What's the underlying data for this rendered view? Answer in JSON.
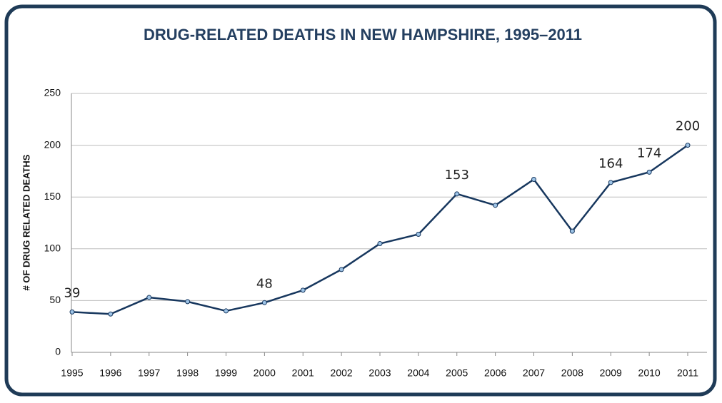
{
  "chart_data": {
    "type": "line",
    "title": "DRUG-RELATED DEATHS IN NEW HAMPSHIRE, 1995–2011",
    "y_label": "# OF DRUG RELATED DEATHS",
    "categories": [
      "1995",
      "1996",
      "1997",
      "1998",
      "1999",
      "2000",
      "2001",
      "2002",
      "2003",
      "2004",
      "2005",
      "2006",
      "2007",
      "2008",
      "2009",
      "2010",
      "2011"
    ],
    "series": [
      {
        "name": "Drug-related deaths",
        "color": "#17375e",
        "values": [
          39,
          37,
          53,
          49,
          40,
          48,
          60,
          80,
          105,
          114,
          153,
          142,
          167,
          117,
          164,
          174,
          200
        ],
        "value_labels": [
          "39",
          null,
          null,
          null,
          null,
          "48",
          null,
          null,
          null,
          null,
          "153",
          null,
          null,
          null,
          "164",
          "174",
          "200"
        ]
      }
    ],
    "ylim": [
      0,
      250
    ],
    "yticks": [
      0,
      50,
      100,
      150,
      200,
      250
    ],
    "grid": true
  }
}
